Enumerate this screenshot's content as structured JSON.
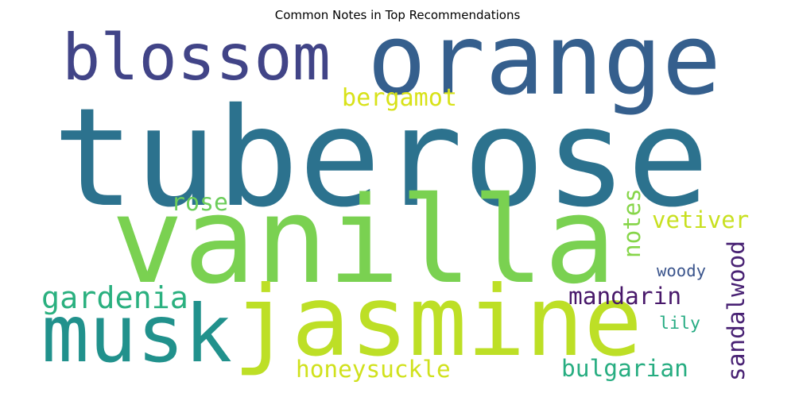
{
  "chart_data": {
    "type": "wordcloud",
    "title": "Common Notes in Top Recommendations",
    "words": [
      {
        "text": "tuberose",
        "weight": 1.0,
        "color": "#2c728e"
      },
      {
        "text": "vanilla",
        "weight": 0.96,
        "color": "#7ad151"
      },
      {
        "text": "orange",
        "weight": 0.7,
        "color": "#355f8d"
      },
      {
        "text": "jasmine",
        "weight": 0.68,
        "color": "#bddf26"
      },
      {
        "text": "blossom",
        "weight": 0.56,
        "color": "#414487"
      },
      {
        "text": "musk",
        "weight": 0.58,
        "color": "#21918c"
      },
      {
        "text": "gardenia",
        "weight": 0.26,
        "color": "#2ab07f"
      },
      {
        "text": "bergamot",
        "weight": 0.2,
        "color": "#d8e219"
      },
      {
        "text": "rose",
        "weight": 0.18,
        "color": "#6ccd5a"
      },
      {
        "text": "notes",
        "weight": 0.2,
        "color": "#86d549"
      },
      {
        "text": "vetiver",
        "weight": 0.2,
        "color": "#c8e020"
      },
      {
        "text": "woody",
        "weight": 0.2,
        "color": "#3a548c"
      },
      {
        "text": "sandalwood",
        "weight": 0.2,
        "color": "#482173"
      },
      {
        "text": "mandarin",
        "weight": 0.2,
        "color": "#48186a"
      },
      {
        "text": "lily",
        "weight": 0.18,
        "color": "#25ab82"
      },
      {
        "text": "honeysuckle",
        "weight": 0.19,
        "color": "#d0e11c"
      },
      {
        "text": "bulgarian",
        "weight": 0.2,
        "color": "#27ad81"
      }
    ]
  }
}
